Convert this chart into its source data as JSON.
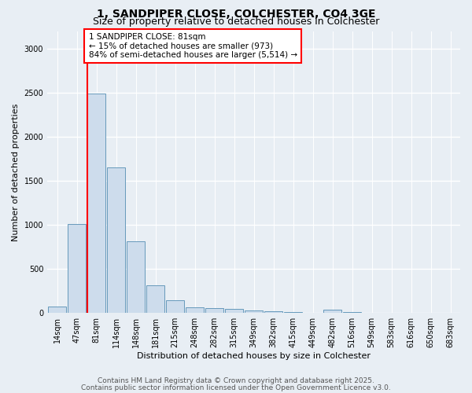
{
  "title1": "1, SANDPIPER CLOSE, COLCHESTER, CO4 3GE",
  "title2": "Size of property relative to detached houses in Colchester",
  "xlabel": "Distribution of detached houses by size in Colchester",
  "ylabel": "Number of detached properties",
  "categories": [
    "14sqm",
    "47sqm",
    "81sqm",
    "114sqm",
    "148sqm",
    "181sqm",
    "215sqm",
    "248sqm",
    "282sqm",
    "315sqm",
    "349sqm",
    "382sqm",
    "415sqm",
    "449sqm",
    "482sqm",
    "516sqm",
    "549sqm",
    "583sqm",
    "616sqm",
    "650sqm",
    "683sqm"
  ],
  "values": [
    70,
    1005,
    2490,
    1650,
    815,
    310,
    140,
    60,
    55,
    40,
    25,
    15,
    5,
    0,
    30,
    5,
    0,
    0,
    0,
    0,
    0
  ],
  "bar_color": "#cddcec",
  "bar_edge_color": "#6699bb",
  "redline_bar_index": 2,
  "annotation_box_text": "1 SANDPIPER CLOSE: 81sqm\n← 15% of detached houses are smaller (973)\n84% of semi-detached houses are larger (5,514) →",
  "ylim": [
    0,
    3200
  ],
  "yticks": [
    0,
    500,
    1000,
    1500,
    2000,
    2500,
    3000
  ],
  "footnote1": "Contains HM Land Registry data © Crown copyright and database right 2025.",
  "footnote2": "Contains public sector information licensed under the Open Government Licence v3.0.",
  "bg_color": "#e8eef4",
  "plot_bg_color": "#e8eef4",
  "grid_color": "#ffffff",
  "title_fontsize": 10,
  "subtitle_fontsize": 9,
  "label_fontsize": 8,
  "tick_fontsize": 7,
  "annot_fontsize": 7.5,
  "footnote_fontsize": 6.5
}
